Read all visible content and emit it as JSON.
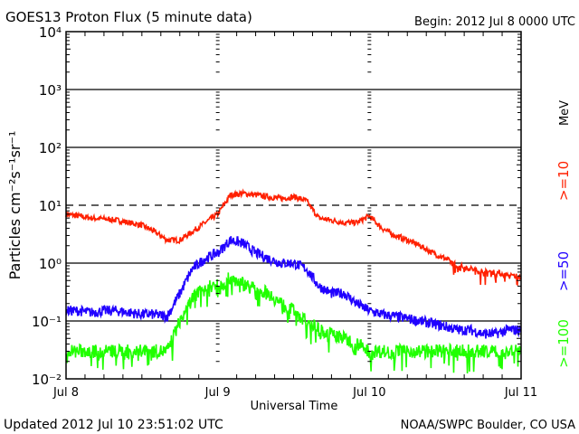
{
  "chart_data": {
    "type": "line",
    "title": "GOES13 Proton Flux (5 minute data)",
    "begin": "Begin: 2012 Jul 8 0000 UTC",
    "xlabel": "Universal Time",
    "ylabel": "Particles cm⁻²s⁻¹sr⁻¹",
    "yscale": "log",
    "ylim": [
      0.01,
      10000
    ],
    "ytick_labels": [
      "10⁴",
      "10³",
      "10²",
      "10¹",
      "10⁰",
      "10⁻¹",
      "10⁻²"
    ],
    "xlim_hours": [
      0,
      72
    ],
    "xtick_labels": [
      "Jul 8",
      "Jul 9",
      "Jul 10",
      "Jul 11"
    ],
    "threshold_line": 10,
    "x_hours": [
      0,
      2,
      4,
      6,
      8,
      10,
      12,
      14,
      16,
      18,
      20,
      22,
      24,
      26,
      28,
      30,
      32,
      34,
      36,
      38,
      40,
      42,
      44,
      46,
      48,
      50,
      52,
      54,
      56,
      58,
      60,
      62,
      64,
      66,
      68,
      70,
      72
    ],
    "series": [
      {
        "name": ">=10 MeV",
        "label": ">=10",
        "unit": "MeV",
        "color": "#ff2000",
        "values": [
          7,
          6.5,
          6,
          5.8,
          5.5,
          5,
          4.5,
          3.5,
          2.5,
          2.5,
          3.5,
          5,
          7,
          15,
          16,
          15,
          14,
          13,
          14,
          12,
          6,
          5.5,
          5,
          5,
          6.5,
          4,
          3,
          2.5,
          2,
          1.5,
          1.2,
          0.9,
          0.8,
          0.7,
          0.7,
          0.6,
          0.6
        ]
      },
      {
        "name": ">=50 MeV",
        "label": ">=50",
        "color": "#2000ff",
        "values": [
          0.15,
          0.15,
          0.14,
          0.15,
          0.15,
          0.14,
          0.13,
          0.13,
          0.12,
          0.3,
          0.8,
          1.2,
          1.5,
          2.5,
          2.2,
          1.5,
          1.2,
          1.0,
          1.0,
          0.8,
          0.4,
          0.3,
          0.3,
          0.2,
          0.15,
          0.13,
          0.12,
          0.11,
          0.1,
          0.09,
          0.08,
          0.07,
          0.07,
          0.06,
          0.06,
          0.07,
          0.07
        ]
      },
      {
        "name": ">=100 MeV",
        "label": ">=100",
        "color": "#20ff00",
        "values": [
          0.03,
          0.03,
          0.03,
          0.03,
          0.03,
          0.03,
          0.03,
          0.03,
          0.03,
          0.1,
          0.25,
          0.4,
          0.4,
          0.55,
          0.45,
          0.35,
          0.3,
          0.2,
          0.15,
          0.1,
          0.07,
          0.06,
          0.05,
          0.04,
          0.03,
          0.03,
          0.03,
          0.03,
          0.03,
          0.03,
          0.03,
          0.03,
          0.03,
          0.03,
          0.03,
          0.03,
          0.03
        ]
      }
    ]
  },
  "footer": {
    "updated": "Updated 2012 Jul 10 23:51:02 UTC",
    "credit": "NOAA/SWPC Boulder, CO USA"
  }
}
